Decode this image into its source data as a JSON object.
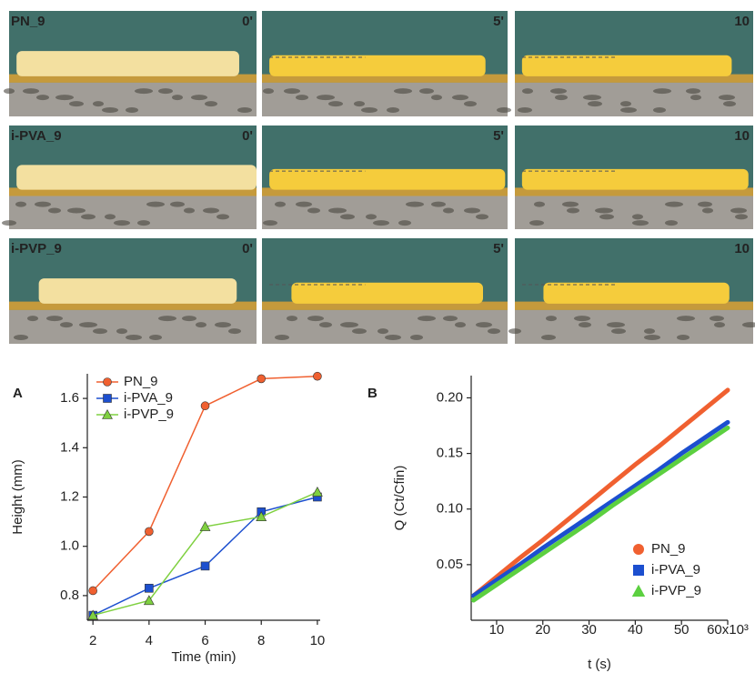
{
  "photos": {
    "rows": [
      {
        "label": "PN_9",
        "times": [
          "0'",
          "5'",
          "10"
        ]
      },
      {
        "label": "i-PVA_9",
        "times": [
          "0'",
          "5'",
          "10"
        ]
      },
      {
        "label": "i-PVP_9",
        "times": [
          "0'",
          "5'",
          "10"
        ]
      }
    ]
  },
  "chart_data": [
    {
      "type": "line",
      "panel": "A",
      "xlabel": "Time (min)",
      "ylabel": "Height (mm)",
      "x": [
        2,
        4,
        6,
        8,
        10
      ],
      "series": [
        {
          "name": "PN_9",
          "color": "#f06030",
          "marker": "circle",
          "values": [
            0.82,
            1.06,
            1.57,
            1.68,
            1.69
          ]
        },
        {
          "name": "i-PVA_9",
          "color": "#1c4fcf",
          "marker": "square",
          "values": [
            0.72,
            0.83,
            0.92,
            1.14,
            1.2
          ]
        },
        {
          "name": "i-PVP_9",
          "color": "#7fd040",
          "marker": "triangle",
          "values": [
            0.72,
            0.78,
            1.08,
            1.12,
            1.22
          ]
        }
      ],
      "xlim": [
        1.8,
        10.1
      ],
      "ylim": [
        0.7,
        1.7
      ],
      "xticks": [
        2,
        4,
        6,
        8,
        10
      ],
      "yticks": [
        0.8,
        {
          "value": 1,
          "label": "1.0"
        },
        1.2,
        1.4,
        1.6
      ],
      "legend": "upper left"
    },
    {
      "type": "line",
      "panel": "B",
      "xlabel": "t (s)",
      "ylabel": "Q (Ct/Cfin)",
      "x": [
        5000,
        10000,
        15000,
        20000,
        25000,
        30000,
        35000,
        40000,
        45000,
        50000,
        55000,
        60000
      ],
      "series": [
        {
          "name": "PN_9",
          "color": "#f06030",
          "marker": "circle",
          "values": [
            0.022,
            0.039,
            0.056,
            0.072,
            0.089,
            0.106,
            0.123,
            0.14,
            0.156,
            0.173,
            0.19,
            0.207
          ]
        },
        {
          "name": "i-PVA_9",
          "color": "#1c4fcf",
          "marker": "square",
          "values": [
            0.022,
            0.036,
            0.05,
            0.065,
            0.079,
            0.093,
            0.107,
            0.121,
            0.135,
            0.15,
            0.164,
            0.178
          ]
        },
        {
          "name": "i-PVP_9",
          "color": "#5cd040",
          "marker": "triangle",
          "values": [
            0.018,
            0.032,
            0.046,
            0.06,
            0.074,
            0.088,
            0.103,
            0.117,
            0.131,
            0.145,
            0.159,
            0.173
          ]
        }
      ],
      "xlim": [
        4500,
        60000
      ],
      "ylim": [
        0,
        0.22
      ],
      "xticks": [
        {
          "value": 10000,
          "label": "10"
        },
        {
          "value": 20000,
          "label": "20"
        },
        {
          "value": 30000,
          "label": "30"
        },
        {
          "value": 40000,
          "label": "40"
        },
        {
          "value": 50000,
          "label": "50"
        },
        {
          "value": 60000,
          "label": "60x10³"
        }
      ],
      "yticks": [
        0.05,
        {
          "value": 0.1,
          "label": "0.10"
        },
        0.15,
        {
          "value": 0.2,
          "label": "0.20"
        }
      ],
      "legend": "lower right"
    }
  ]
}
